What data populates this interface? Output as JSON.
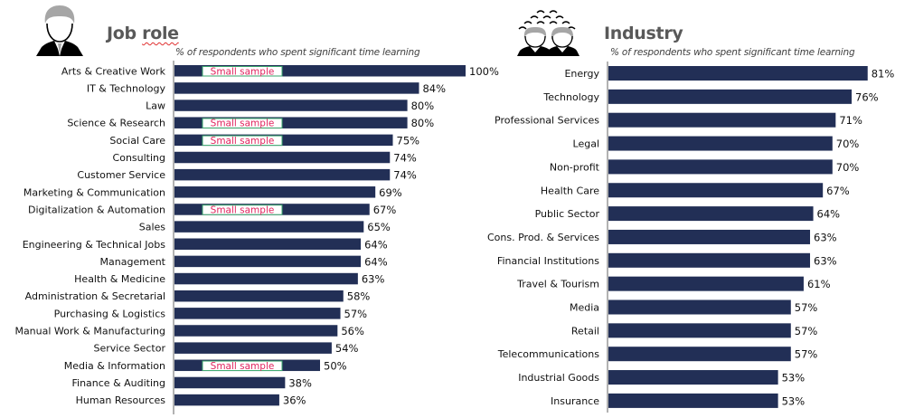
{
  "colors": {
    "bar": "#222f56",
    "axis": "#7f7f7f",
    "title": "#595959",
    "small_sample_text": "#e0245e",
    "small_sample_border": "#3aa76d",
    "small_sample_bg": "#ffffff"
  },
  "left_panel": {
    "icon": "business-person-icon",
    "title_part1": "Job ",
    "title_part2": "role",
    "subtitle": "% of respondents who spent significant time learning"
  },
  "right_panel": {
    "icon": "crowd-people-icon",
    "title": "Industry",
    "subtitle": "% of respondents who spent significant time learning"
  },
  "chart_data": [
    {
      "type": "bar",
      "orientation": "horizontal",
      "title": "Job role",
      "subtitle": "% of respondents who spent significant time learning",
      "xlim": [
        0,
        100
      ],
      "unit": "%",
      "annotation_label": "Small sample",
      "categories": [
        "Arts & Creative Work",
        "IT & Technology",
        "Law",
        "Science & Research",
        "Social Care",
        "Consulting",
        "Customer Service",
        "Marketing & Communication",
        "Digitalization & Automation",
        "Sales",
        "Engineering & Technical Jobs",
        "Management",
        "Health & Medicine",
        "Administration & Secretarial",
        "Purchasing & Logistics",
        "Manual Work & Manufacturing",
        "Service Sector",
        "Media & Information",
        "Finance & Auditing",
        "Human Resources"
      ],
      "values": [
        100,
        84,
        80,
        80,
        75,
        74,
        74,
        69,
        67,
        65,
        64,
        64,
        63,
        58,
        57,
        56,
        54,
        50,
        38,
        36
      ],
      "small_sample": [
        true,
        false,
        false,
        true,
        true,
        false,
        false,
        false,
        true,
        false,
        false,
        false,
        false,
        false,
        false,
        false,
        false,
        true,
        false,
        false
      ]
    },
    {
      "type": "bar",
      "orientation": "horizontal",
      "title": "Industry",
      "subtitle": "% of respondents who spent significant time learning",
      "xlim": [
        0,
        100
      ],
      "unit": "%",
      "categories": [
        "Energy",
        "Technology",
        "Professional Services",
        "Legal",
        "Non-profit",
        "Health Care",
        "Public Sector",
        "Cons. Prod. & Services",
        "Financial Institutions",
        "Travel & Tourism",
        "Media",
        "Retail",
        "Telecommunications",
        "Industrial Goods",
        "Insurance"
      ],
      "values": [
        81,
        76,
        71,
        70,
        70,
        67,
        64,
        63,
        63,
        61,
        57,
        57,
        57,
        53,
        53
      ]
    }
  ]
}
